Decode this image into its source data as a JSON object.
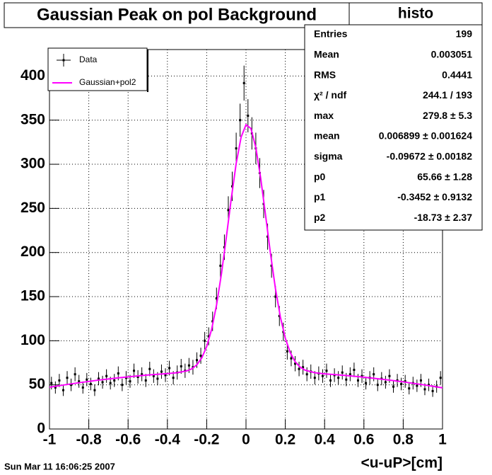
{
  "chart_data": {
    "type": "histogram_fit",
    "title": "Gaussian Peak on pol Background",
    "x_label": "<u-uP>[cm]",
    "timestamp": "Sun Mar 11 16:06:25 2007",
    "xlim": [
      -1,
      1
    ],
    "ylim": [
      0,
      430
    ],
    "xticks": [
      -1,
      -0.8,
      -0.6,
      -0.4,
      -0.2,
      0,
      0.2,
      0.4,
      0.6,
      0.8,
      1
    ],
    "yticks": [
      0,
      50,
      100,
      150,
      200,
      250,
      300,
      350,
      400
    ],
    "grid": true,
    "legend": "top-left",
    "stats": {
      "header": "histo",
      "rows": [
        {
          "label": "Entries",
          "value": "199"
        },
        {
          "label": "Mean",
          "value": "0.003051"
        },
        {
          "label": "RMS",
          "value": "0.4441"
        },
        {
          "label": "χ² / ndf",
          "value": "244.1 / 193"
        },
        {
          "label": "max",
          "value": "279.8 ± 5.3"
        },
        {
          "label": "mean",
          "value": "0.006899 ± 0.001624"
        },
        {
          "label": "sigma",
          "value": "-0.09672 ± 0.00182"
        },
        {
          "label": "p0",
          "value": "65.66 ± 1.28"
        },
        {
          "label": "p1",
          "value": "-0.3452 ± 0.9132"
        },
        {
          "label": "p2",
          "value": "-18.73 ± 2.37"
        }
      ]
    },
    "series": [
      {
        "name": "Data",
        "color": "#000000",
        "x": [
          -0.99,
          -0.97,
          -0.95,
          -0.93,
          -0.91,
          -0.89,
          -0.87,
          -0.85,
          -0.83,
          -0.81,
          -0.79,
          -0.77,
          -0.75,
          -0.73,
          -0.71,
          -0.69,
          -0.67,
          -0.65,
          -0.63,
          -0.61,
          -0.59,
          -0.57,
          -0.55,
          -0.53,
          -0.51,
          -0.49,
          -0.47,
          -0.45,
          -0.43,
          -0.41,
          -0.39,
          -0.37,
          -0.35,
          -0.33,
          -0.31,
          -0.29,
          -0.27,
          -0.25,
          -0.23,
          -0.21,
          -0.19,
          -0.17,
          -0.15,
          -0.13,
          -0.11,
          -0.09,
          -0.07,
          -0.05,
          -0.03,
          -0.01,
          0.01,
          0.03,
          0.05,
          0.07,
          0.09,
          0.11,
          0.13,
          0.15,
          0.17,
          0.19,
          0.21,
          0.23,
          0.25,
          0.27,
          0.29,
          0.31,
          0.33,
          0.35,
          0.37,
          0.39,
          0.41,
          0.43,
          0.45,
          0.47,
          0.49,
          0.51,
          0.53,
          0.55,
          0.57,
          0.59,
          0.61,
          0.63,
          0.65,
          0.67,
          0.69,
          0.71,
          0.73,
          0.75,
          0.77,
          0.79,
          0.81,
          0.83,
          0.85,
          0.87,
          0.89,
          0.91,
          0.93,
          0.95,
          0.97,
          0.99
        ],
        "values": [
          52,
          47,
          55,
          44,
          58,
          50,
          62,
          54,
          47,
          56,
          51,
          44,
          57,
          53,
          60,
          52,
          55,
          63,
          50,
          58,
          54,
          66,
          59,
          62,
          55,
          68,
          60,
          57,
          65,
          61,
          69,
          58,
          64,
          71,
          66,
          72,
          70,
          78,
          83,
          100,
          105,
          122,
          148,
          185,
          206,
          248,
          275,
          318,
          350,
          392,
          355,
          335,
          318,
          290,
          255,
          218,
          185,
          150,
          128,
          110,
          88,
          80,
          74,
          68,
          70,
          62,
          65,
          58,
          63,
          60,
          66,
          55,
          61,
          58,
          64,
          56,
          62,
          67,
          55,
          60,
          52,
          58,
          62,
          50,
          57,
          53,
          60,
          48,
          55,
          51,
          54,
          46,
          52,
          49,
          55,
          45,
          50,
          43,
          48,
          58
        ],
        "errors": [
          7.2,
          6.9,
          7.4,
          6.6,
          7.6,
          7.1,
          7.9,
          7.3,
          6.9,
          7.5,
          7.1,
          6.6,
          7.5,
          7.3,
          7.7,
          7.2,
          7.4,
          7.9,
          7.1,
          7.6,
          7.3,
          8.1,
          7.7,
          7.9,
          7.4,
          8.2,
          7.7,
          7.5,
          8.1,
          7.8,
          8.3,
          7.6,
          8.0,
          8.4,
          8.1,
          8.5,
          8.4,
          8.8,
          9.1,
          10,
          10.2,
          11.0,
          12.2,
          13.6,
          14.4,
          15.7,
          16.6,
          17.8,
          18.7,
          19.8,
          18.8,
          18.3,
          17.8,
          17.0,
          16.0,
          14.8,
          13.6,
          12.2,
          11.3,
          10.5,
          9.4,
          8.9,
          8.6,
          8.2,
          8.4,
          7.9,
          8.1,
          7.6,
          7.9,
          7.7,
          8.1,
          7.4,
          7.8,
          7.6,
          8.0,
          7.5,
          7.9,
          8.2,
          7.4,
          7.7,
          7.2,
          7.6,
          7.9,
          7.1,
          7.5,
          7.3,
          7.7,
          6.9,
          7.4,
          7.1,
          7.3,
          6.8,
          7.2,
          7.0,
          7.4,
          6.7,
          7.1,
          6.6,
          6.9,
          7.6
        ]
      },
      {
        "name": "Gaussian+pol2",
        "color": "#ff00ff",
        "x": [
          -1,
          -0.95,
          -0.9,
          -0.85,
          -0.8,
          -0.75,
          -0.7,
          -0.65,
          -0.6,
          -0.55,
          -0.5,
          -0.45,
          -0.4,
          -0.35,
          -0.3,
          -0.275,
          -0.25,
          -0.225,
          -0.2,
          -0.175,
          -0.15,
          -0.125,
          -0.1,
          -0.075,
          -0.05,
          -0.025,
          0,
          0.025,
          0.05,
          0.075,
          0.1,
          0.125,
          0.15,
          0.175,
          0.2,
          0.225,
          0.25,
          0.275,
          0.3,
          0.35,
          0.4,
          0.45,
          0.5,
          0.55,
          0.6,
          0.65,
          0.7,
          0.75,
          0.8,
          0.85,
          0.9,
          0.95,
          1
        ],
        "values": [
          47.3,
          49.1,
          50.8,
          52.4,
          53.9,
          55.4,
          56.7,
          58.0,
          59.1,
          60.2,
          61.2,
          62.0,
          62.8,
          63.8,
          65.9,
          68.3,
          72.8,
          80.6,
          93.4,
          112.8,
          140.3,
          175.8,
          217.4,
          261.0,
          300.9,
          330.7,
          344.8,
          340.6,
          319.0,
          283.9,
          241.5,
          198.1,
          158.8,
          126.8,
          102.9,
          86.6,
          76.3,
          70.2,
          66.7,
          63.8,
          62.5,
          61.7,
          60.8,
          59.8,
          58.7,
          57.5,
          56.2,
          54.9,
          53.4,
          51.8,
          50.2,
          48.4,
          46.6
        ]
      }
    ]
  }
}
